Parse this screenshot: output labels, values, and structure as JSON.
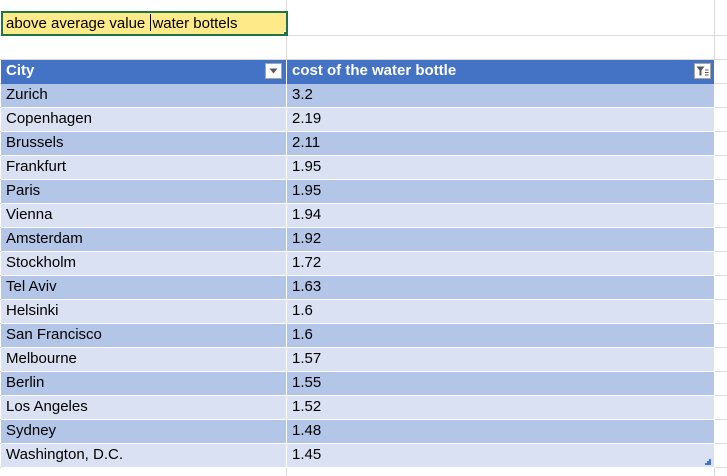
{
  "selected_cell": {
    "text_before_cursor": "above average value ",
    "text_after_cursor": "water bottels"
  },
  "table": {
    "headers": [
      "City",
      "cost of the water bottle"
    ],
    "filter_icons": [
      "dropdown-arrow-icon",
      "filter-active-icon"
    ],
    "rows": [
      {
        "city": "Zurich",
        "cost": "3.2"
      },
      {
        "city": "Copenhagen",
        "cost": "2.19"
      },
      {
        "city": "Brussels",
        "cost": "2.11"
      },
      {
        "city": "Frankfurt",
        "cost": "1.95"
      },
      {
        "city": "Paris",
        "cost": "1.95"
      },
      {
        "city": "Vienna",
        "cost": "1.94"
      },
      {
        "city": "Amsterdam",
        "cost": "1.92"
      },
      {
        "city": "Stockholm",
        "cost": "1.72"
      },
      {
        "city": "Tel Aviv",
        "cost": "1.63"
      },
      {
        "city": "Helsinki",
        "cost": "1.6"
      },
      {
        "city": "San Francisco",
        "cost": "1.6"
      },
      {
        "city": "Melbourne",
        "cost": "1.57"
      },
      {
        "city": "Berlin",
        "cost": "1.55"
      },
      {
        "city": "Los Angeles",
        "cost": "1.52"
      },
      {
        "city": "Sydney",
        "cost": "1.48"
      },
      {
        "city": "Washington, D.C.",
        "cost": "1.45"
      }
    ]
  },
  "colors": {
    "header_bg": "#4472c4",
    "band_dark": "#b4c6e7",
    "band_light": "#d9e1f2",
    "selected_fill": "#ffea8a",
    "selection_border": "#217346"
  }
}
